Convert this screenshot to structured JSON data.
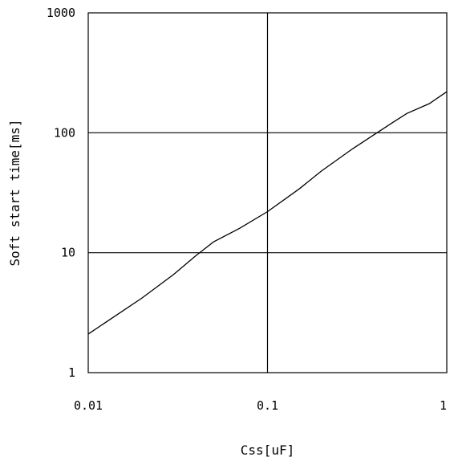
{
  "chart_data": {
    "type": "line",
    "xlabel": "Css[uF]",
    "ylabel": "Soft start time[ms]",
    "x_scale": "log",
    "y_scale": "log",
    "xlim": [
      0.01,
      1
    ],
    "ylim": [
      1,
      1000
    ],
    "x_ticks": [
      {
        "value": 0.01,
        "label": "0.01"
      },
      {
        "value": 0.1,
        "label": "0.1"
      },
      {
        "value": 1,
        "label": "1"
      }
    ],
    "y_ticks": [
      {
        "value": 1,
        "label": "1"
      },
      {
        "value": 10,
        "label": "10"
      },
      {
        "value": 100,
        "label": "100"
      },
      {
        "value": 1000,
        "label": "1000"
      }
    ],
    "grid": true,
    "series": [
      {
        "x": [
          0.01,
          0.02,
          0.03,
          0.04,
          0.05,
          0.07,
          0.1,
          0.15,
          0.2,
          0.3,
          0.4,
          0.5,
          0.6,
          0.8,
          1.0
        ],
        "y": [
          2.1,
          4.2,
          6.6,
          9.5,
          12.3,
          16.0,
          22.0,
          34.0,
          48.0,
          74.0,
          98.0,
          122.0,
          145.0,
          175.0,
          220.0
        ]
      }
    ],
    "colors": {
      "line": "#000000",
      "grid": "#000000",
      "frame": "#000000"
    }
  }
}
